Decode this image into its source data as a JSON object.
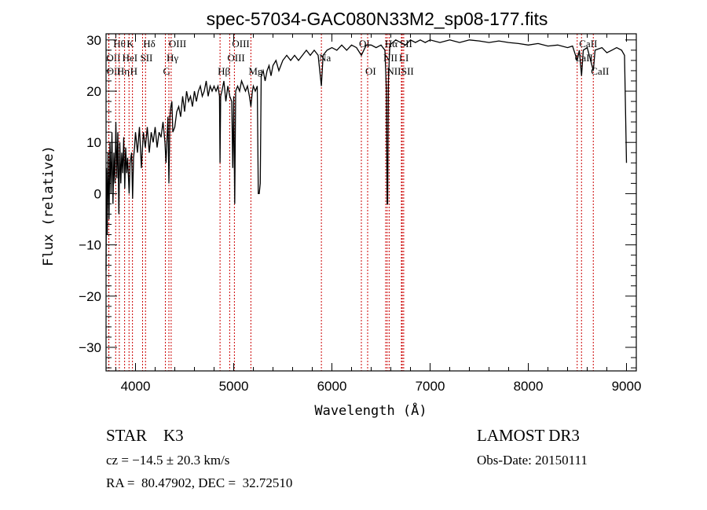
{
  "chart_data": {
    "type": "line",
    "title": "spec-57034-GAC080N33M2_sp08-177.fits",
    "xlabel": "Wavelength (Å)",
    "ylabel": "Flux (relative)",
    "xlim": [
      3700,
      9100
    ],
    "ylim": [
      -34.6,
      31.2
    ],
    "xticks": [
      4000,
      5000,
      6000,
      7000,
      8000,
      9000
    ],
    "yticks": [
      -30,
      -20,
      -10,
      0,
      10,
      20,
      30
    ],
    "grid": false,
    "line_color": "#000000",
    "marker_color": "#cc0000",
    "spectrum": [
      [
        3700,
        -15
      ],
      [
        3705,
        5
      ],
      [
        3712,
        -8
      ],
      [
        3720,
        8
      ],
      [
        3730,
        -5
      ],
      [
        3740,
        10
      ],
      [
        3750,
        0
      ],
      [
        3760,
        12
      ],
      [
        3770,
        -2
      ],
      [
        3780,
        8
      ],
      [
        3790,
        2
      ],
      [
        3800,
        14
      ],
      [
        3810,
        3
      ],
      [
        3820,
        12
      ],
      [
        3830,
        -4
      ],
      [
        3840,
        10
      ],
      [
        3850,
        2
      ],
      [
        3860,
        8
      ],
      [
        3870,
        4
      ],
      [
        3880,
        11
      ],
      [
        3890,
        1
      ],
      [
        3900,
        9
      ],
      [
        3910,
        4
      ],
      [
        3920,
        7
      ],
      [
        3935,
        0
      ],
      [
        3945,
        6
      ],
      [
        3960,
        8
      ],
      [
        3970,
        -1
      ],
      [
        3980,
        7
      ],
      [
        3990,
        9
      ],
      [
        4000,
        12
      ],
      [
        4020,
        8
      ],
      [
        4040,
        13
      ],
      [
        4060,
        5
      ],
      [
        4080,
        12
      ],
      [
        4100,
        9
      ],
      [
        4120,
        13
      ],
      [
        4140,
        8
      ],
      [
        4160,
        12
      ],
      [
        4180,
        10
      ],
      [
        4200,
        13
      ],
      [
        4220,
        9
      ],
      [
        4240,
        12
      ],
      [
        4260,
        11
      ],
      [
        4280,
        14
      ],
      [
        4300,
        10
      ],
      [
        4310,
        6
      ],
      [
        4330,
        15
      ],
      [
        4340,
        2
      ],
      [
        4350,
        15
      ],
      [
        4360,
        17
      ],
      [
        4370,
        18
      ],
      [
        4380,
        12
      ],
      [
        4400,
        13
      ],
      [
        4420,
        16
      ],
      [
        4440,
        17
      ],
      [
        4460,
        15
      ],
      [
        4480,
        19
      ],
      [
        4500,
        16
      ],
      [
        4520,
        20
      ],
      [
        4540,
        18
      ],
      [
        4560,
        19
      ],
      [
        4580,
        17
      ],
      [
        4600,
        20
      ],
      [
        4620,
        18
      ],
      [
        4640,
        20
      ],
      [
        4660,
        21
      ],
      [
        4680,
        19
      ],
      [
        4700,
        20
      ],
      [
        4720,
        22
      ],
      [
        4740,
        19
      ],
      [
        4760,
        21
      ],
      [
        4780,
        20
      ],
      [
        4800,
        21
      ],
      [
        4820,
        20
      ],
      [
        4840,
        21
      ],
      [
        4855,
        19
      ],
      [
        4861,
        6
      ],
      [
        4867,
        19
      ],
      [
        4880,
        20
      ],
      [
        4900,
        22
      ],
      [
        4920,
        18
      ],
      [
        4940,
        21
      ],
      [
        4960,
        19
      ],
      [
        4980,
        18
      ],
      [
        4990,
        5
      ],
      [
        5000,
        19
      ],
      [
        5010,
        -2
      ],
      [
        5020,
        20
      ],
      [
        5040,
        21
      ],
      [
        5060,
        20
      ],
      [
        5080,
        22
      ],
      [
        5100,
        21
      ],
      [
        5120,
        20
      ],
      [
        5140,
        21
      ],
      [
        5160,
        19
      ],
      [
        5175,
        17
      ],
      [
        5190,
        20
      ],
      [
        5200,
        21
      ],
      [
        5220,
        20
      ],
      [
        5240,
        21
      ],
      [
        5250,
        0
      ],
      [
        5260,
        0
      ],
      [
        5270,
        2
      ],
      [
        5280,
        23
      ],
      [
        5300,
        24
      ],
      [
        5320,
        22
      ],
      [
        5340,
        24
      ],
      [
        5360,
        25
      ],
      [
        5380,
        23
      ],
      [
        5400,
        25
      ],
      [
        5430,
        26
      ],
      [
        5460,
        24
      ],
      [
        5500,
        26
      ],
      [
        5540,
        27
      ],
      [
        5580,
        26
      ],
      [
        5620,
        27
      ],
      [
        5660,
        26
      ],
      [
        5700,
        27
      ],
      [
        5740,
        28
      ],
      [
        5780,
        27
      ],
      [
        5820,
        28
      ],
      [
        5860,
        27
      ],
      [
        5893,
        21
      ],
      [
        5910,
        27
      ],
      [
        5950,
        28
      ],
      [
        6000,
        28.5
      ],
      [
        6050,
        28
      ],
      [
        6100,
        29
      ],
      [
        6150,
        28
      ],
      [
        6200,
        29
      ],
      [
        6250,
        28.5
      ],
      [
        6300,
        27
      ],
      [
        6350,
        29
      ],
      [
        6400,
        29
      ],
      [
        6450,
        28.5
      ],
      [
        6500,
        29
      ],
      [
        6540,
        28
      ],
      [
        6555,
        20
      ],
      [
        6562,
        -2
      ],
      [
        6568,
        -2
      ],
      [
        6575,
        22
      ],
      [
        6590,
        29
      ],
      [
        6650,
        30
      ],
      [
        6700,
        29.5
      ],
      [
        6750,
        29
      ],
      [
        6800,
        30
      ],
      [
        6850,
        29.5
      ],
      [
        6900,
        30
      ],
      [
        6950,
        29.5
      ],
      [
        7000,
        30
      ],
      [
        7100,
        29.5
      ],
      [
        7200,
        30
      ],
      [
        7300,
        29.5
      ],
      [
        7400,
        30
      ],
      [
        7500,
        29.8
      ],
      [
        7600,
        29.5
      ],
      [
        7700,
        29.8
      ],
      [
        7800,
        29.5
      ],
      [
        7900,
        29.3
      ],
      [
        8000,
        29
      ],
      [
        8100,
        29.3
      ],
      [
        8200,
        28.8
      ],
      [
        8300,
        29
      ],
      [
        8400,
        28.5
      ],
      [
        8450,
        28.8
      ],
      [
        8498,
        26
      ],
      [
        8520,
        28
      ],
      [
        8542,
        23
      ],
      [
        8560,
        28
      ],
      [
        8600,
        28.5
      ],
      [
        8662,
        24
      ],
      [
        8680,
        28
      ],
      [
        8750,
        28.5
      ],
      [
        8800,
        27.5
      ],
      [
        8850,
        28
      ],
      [
        8900,
        28.5
      ],
      [
        8950,
        28
      ],
      [
        8980,
        27
      ],
      [
        9000,
        6
      ]
    ],
    "lines": [
      {
        "label": "OII",
        "wl": 3727,
        "row": 2
      },
      {
        "label": "OII",
        "wl": 3729,
        "row": 3
      },
      {
        "label": "Hθ",
        "wl": 3798,
        "row": 1
      },
      {
        "label": "Hη",
        "wl": 3835,
        "row": 3
      },
      {
        "label": "HeI",
        "wl": 3889,
        "row": 2
      },
      {
        "label": "K",
        "wl": 3934,
        "row": 1
      },
      {
        "label": "H",
        "wl": 3969,
        "row": 3
      },
      {
        "label": "SII",
        "wl": 4072,
        "row": 2
      },
      {
        "label": "Hδ",
        "wl": 4102,
        "row": 1
      },
      {
        "label": "G",
        "wl": 4304,
        "row": 3
      },
      {
        "label": "Hγ",
        "wl": 4340,
        "row": 2
      },
      {
        "label": "OIII",
        "wl": 4363,
        "row": 1
      },
      {
        "label": "Hβ",
        "wl": 4861,
        "row": 3
      },
      {
        "label": "OIII",
        "wl": 4959,
        "row": 2
      },
      {
        "label": "OIII",
        "wl": 5007,
        "row": 1
      },
      {
        "label": "Mg",
        "wl": 5175,
        "row": 3
      },
      {
        "label": "Na",
        "wl": 5893,
        "row": 2
      },
      {
        "label": "OI",
        "wl": 6300,
        "row": 1
      },
      {
        "label": "OI",
        "wl": 6364,
        "row": 3
      },
      {
        "label": "NII",
        "wl": 6548,
        "row": 2
      },
      {
        "label": "Hα",
        "wl": 6563,
        "row": 1
      },
      {
        "label": "NII",
        "wl": 6583,
        "row": 3
      },
      {
        "label": "LI",
        "wl": 6708,
        "row": 2
      },
      {
        "label": "SII",
        "wl": 6716,
        "row": 1
      },
      {
        "label": "SII",
        "wl": 6731,
        "row": 3
      },
      {
        "label": "CaII",
        "wl": 8498,
        "row": 2
      },
      {
        "label": "CaII",
        "wl": 8542,
        "row": 1
      },
      {
        "label": "CaII",
        "wl": 8662,
        "row": 3
      }
    ]
  },
  "info": {
    "class": "STAR    K3",
    "survey": "LAMOST DR3",
    "cz": "cz = −14.5 ± 20.3 km/s",
    "obs_date": "Obs-Date: 20150111",
    "coords": "RA =  80.47902, DEC =  32.72510"
  }
}
